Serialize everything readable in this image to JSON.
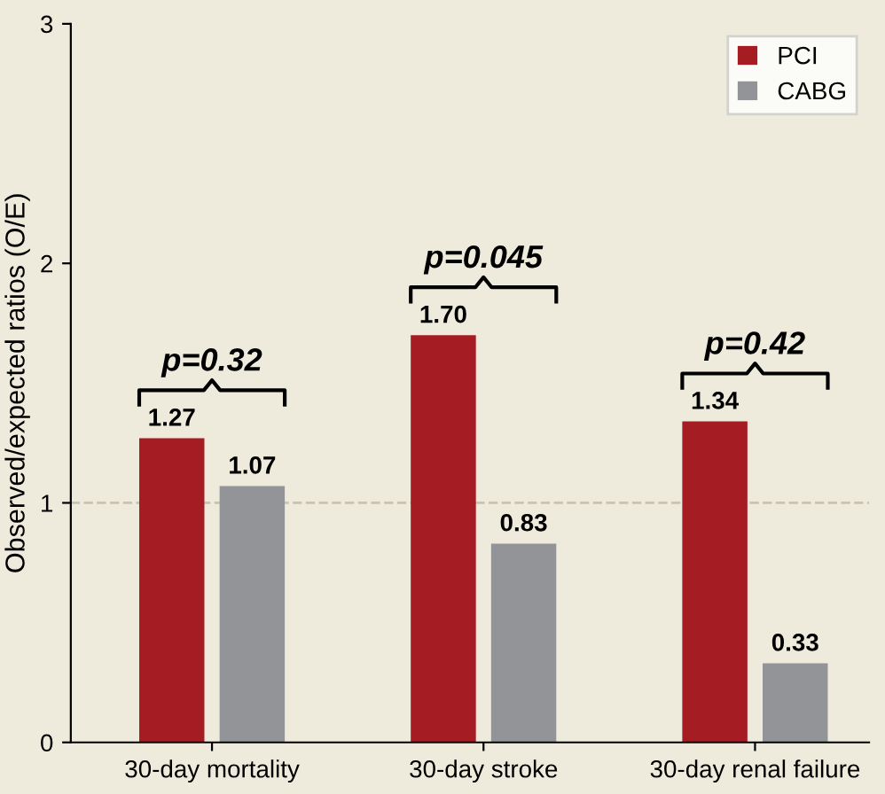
{
  "chart_data": {
    "type": "bar",
    "categories": [
      "30-day mortality",
      "30-day stroke",
      "30-day renal failure"
    ],
    "series": [
      {
        "name": "PCI",
        "color": "#a51d23",
        "values": [
          1.27,
          1.7,
          1.34
        ],
        "value_labels": [
          "1.27",
          "1.70",
          "1.34"
        ]
      },
      {
        "name": "CABG",
        "color": "#929497",
        "values": [
          1.07,
          0.83,
          0.33
        ],
        "value_labels": [
          "1.07",
          "0.83",
          "0.33"
        ]
      }
    ],
    "ylabel": "Observed/expected ratios (O/E)",
    "ylim": [
      0,
      3
    ],
    "yticks": [
      0,
      1,
      2,
      3
    ],
    "ref_lines": [
      {
        "axis": "y",
        "value": 1,
        "color": "#c8c4b0",
        "line_style": "dashed"
      }
    ],
    "annotations": [
      "p=0.32",
      "p=0.045",
      "p=0.42"
    ],
    "grid": false,
    "legend": "top right"
  }
}
